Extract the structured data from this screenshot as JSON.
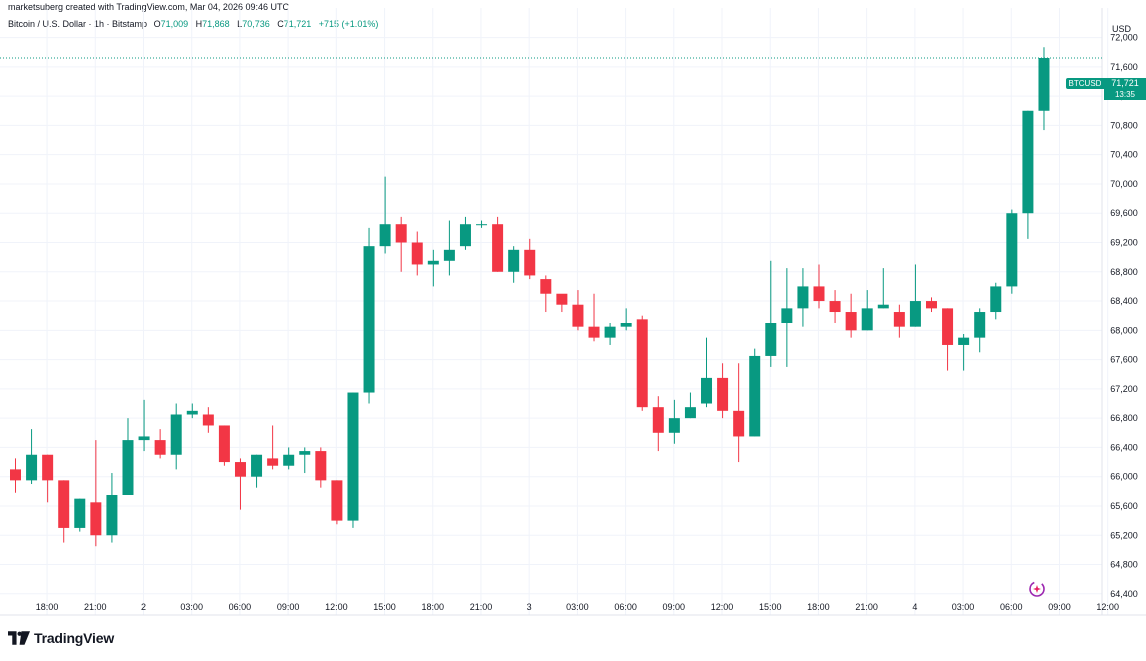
{
  "header": {
    "credit": "marketsuberg created with TradingView.com, Mar 04, 2026 09:46 UTC",
    "symbol_desc": "Bitcoin / U.S. Dollar · 1h · Bitstamp",
    "ohlc": {
      "o_label": "O",
      "o_value": "71,009",
      "h_label": "H",
      "h_value": "71,868",
      "l_label": "L",
      "l_value": "70,736",
      "c_label": "C",
      "c_value": "71,721",
      "change": "+715 (+1.01%)"
    },
    "currency": "USD"
  },
  "price_tag": {
    "symbol": "BTCUSD",
    "price": "71,721",
    "countdown": "13:35"
  },
  "brand": {
    "name": "TradingView"
  },
  "colors": {
    "up": "#089981",
    "down": "#f23645",
    "grid": "#f0f3fa",
    "axis_text": "#131722"
  },
  "icons": {
    "brand": "tradingview-logo-icon",
    "assistant": "ai-sparkle-icon"
  },
  "chart_data": {
    "type": "candlestick",
    "interval": "1h",
    "ylim": [
      64400,
      72400
    ],
    "y_ticks": [
      64400,
      64800,
      65200,
      65600,
      66000,
      66400,
      66800,
      67200,
      67600,
      68000,
      68400,
      68800,
      69200,
      69600,
      70000,
      70400,
      70800,
      71200,
      71600,
      72000
    ],
    "y_tick_labels": [
      "64,400",
      "64,800",
      "65,200",
      "65,600",
      "66,000",
      "66,400",
      "66,800",
      "67,200",
      "67,600",
      "68,000",
      "68,400",
      "68,800",
      "69,200",
      "69,600",
      "70,000",
      "70,400",
      "70,800",
      "71,200",
      "71,600",
      "72,000"
    ],
    "x_ticks": [
      {
        "label": "18:00",
        "index": 1
      },
      {
        "label": "21:00",
        "index": 4
      },
      {
        "label": "2",
        "index": 7
      },
      {
        "label": "03:00",
        "index": 10
      },
      {
        "label": "06:00",
        "index": 13
      },
      {
        "label": "09:00",
        "index": 16
      },
      {
        "label": "12:00",
        "index": 19
      },
      {
        "label": "15:00",
        "index": 22
      },
      {
        "label": "18:00",
        "index": 25
      },
      {
        "label": "21:00",
        "index": 28
      },
      {
        "label": "3",
        "index": 31
      },
      {
        "label": "03:00",
        "index": 34
      },
      {
        "label": "06:00",
        "index": 37
      },
      {
        "label": "09:00",
        "index": 40
      },
      {
        "label": "12:00",
        "index": 43
      },
      {
        "label": "15:00",
        "index": 46
      },
      {
        "label": "18:00",
        "index": 49
      },
      {
        "label": "21:00",
        "index": 52
      },
      {
        "label": "4",
        "index": 55
      },
      {
        "label": "03:00",
        "index": 58
      },
      {
        "label": "06:00",
        "index": 61
      },
      {
        "label": "09:00",
        "index": 64
      },
      {
        "label": "12:00",
        "index": 67
      }
    ],
    "last_price": 71721,
    "candles": [
      {
        "o": 66100,
        "h": 66250,
        "l": 65780,
        "c": 65950
      },
      {
        "o": 65950,
        "h": 66650,
        "l": 65900,
        "c": 66300
      },
      {
        "o": 66300,
        "h": 66300,
        "l": 65650,
        "c": 65950
      },
      {
        "o": 65950,
        "h": 65950,
        "l": 65100,
        "c": 65300
      },
      {
        "o": 65300,
        "h": 65700,
        "l": 65250,
        "c": 65700
      },
      {
        "o": 65650,
        "h": 66500,
        "l": 65050,
        "c": 65200
      },
      {
        "o": 65200,
        "h": 66050,
        "l": 65100,
        "c": 65750
      },
      {
        "o": 65750,
        "h": 66800,
        "l": 65750,
        "c": 66500
      },
      {
        "o": 66500,
        "h": 67050,
        "l": 66350,
        "c": 66550
      },
      {
        "o": 66500,
        "h": 66650,
        "l": 66250,
        "c": 66300
      },
      {
        "o": 66300,
        "h": 67000,
        "l": 66100,
        "c": 66850
      },
      {
        "o": 66850,
        "h": 67000,
        "l": 66800,
        "c": 66900
      },
      {
        "o": 66850,
        "h": 66950,
        "l": 66600,
        "c": 66700
      },
      {
        "o": 66700,
        "h": 66700,
        "l": 66150,
        "c": 66200
      },
      {
        "o": 66200,
        "h": 66250,
        "l": 65550,
        "c": 66000
      },
      {
        "o": 66000,
        "h": 66300,
        "l": 65850,
        "c": 66300
      },
      {
        "o": 66250,
        "h": 66700,
        "l": 66100,
        "c": 66150
      },
      {
        "o": 66150,
        "h": 66400,
        "l": 66100,
        "c": 66300
      },
      {
        "o": 66300,
        "h": 66400,
        "l": 66050,
        "c": 66350
      },
      {
        "o": 66350,
        "h": 66400,
        "l": 65850,
        "c": 65950
      },
      {
        "o": 65950,
        "h": 65950,
        "l": 65350,
        "c": 65400
      },
      {
        "o": 65400,
        "h": 67150,
        "l": 65300,
        "c": 67150
      },
      {
        "o": 67150,
        "h": 69400,
        "l": 67000,
        "c": 69150
      },
      {
        "o": 69150,
        "h": 70100,
        "l": 69050,
        "c": 69450
      },
      {
        "o": 69450,
        "h": 69550,
        "l": 68800,
        "c": 69200
      },
      {
        "o": 69200,
        "h": 69350,
        "l": 68750,
        "c": 68900
      },
      {
        "o": 68900,
        "h": 69100,
        "l": 68600,
        "c": 68950
      },
      {
        "o": 68950,
        "h": 69500,
        "l": 68750,
        "c": 69100
      },
      {
        "o": 69150,
        "h": 69550,
        "l": 69100,
        "c": 69450
      },
      {
        "o": 69450,
        "h": 69500,
        "l": 69400,
        "c": 69450
      },
      {
        "o": 69450,
        "h": 69550,
        "l": 68800,
        "c": 68800
      },
      {
        "o": 68800,
        "h": 69150,
        "l": 68650,
        "c": 69100
      },
      {
        "o": 69100,
        "h": 69250,
        "l": 68700,
        "c": 68750
      },
      {
        "o": 68700,
        "h": 68750,
        "l": 68250,
        "c": 68500
      },
      {
        "o": 68500,
        "h": 68450,
        "l": 68250,
        "c": 68350
      },
      {
        "o": 68350,
        "h": 68550,
        "l": 68000,
        "c": 68050
      },
      {
        "o": 68050,
        "h": 68500,
        "l": 67850,
        "c": 67900
      },
      {
        "o": 67900,
        "h": 68100,
        "l": 67800,
        "c": 68050
      },
      {
        "o": 68050,
        "h": 68300,
        "l": 68000,
        "c": 68100
      },
      {
        "o": 68150,
        "h": 68200,
        "l": 66900,
        "c": 66950
      },
      {
        "o": 66950,
        "h": 67100,
        "l": 66350,
        "c": 66600
      },
      {
        "o": 66600,
        "h": 67050,
        "l": 66450,
        "c": 66800
      },
      {
        "o": 66800,
        "h": 67150,
        "l": 66800,
        "c": 66950
      },
      {
        "o": 67000,
        "h": 67900,
        "l": 66950,
        "c": 67350
      },
      {
        "o": 67350,
        "h": 67550,
        "l": 66800,
        "c": 66900
      },
      {
        "o": 66900,
        "h": 67550,
        "l": 66200,
        "c": 66550
      },
      {
        "o": 66550,
        "h": 67750,
        "l": 66550,
        "c": 67650
      },
      {
        "o": 67650,
        "h": 68950,
        "l": 67500,
        "c": 68100
      },
      {
        "o": 68100,
        "h": 68850,
        "l": 67500,
        "c": 68300
      },
      {
        "o": 68300,
        "h": 68850,
        "l": 68050,
        "c": 68600
      },
      {
        "o": 68600,
        "h": 68900,
        "l": 68300,
        "c": 68400
      },
      {
        "o": 68400,
        "h": 68550,
        "l": 68100,
        "c": 68250
      },
      {
        "o": 68250,
        "h": 68500,
        "l": 67900,
        "c": 68000
      },
      {
        "o": 68000,
        "h": 68550,
        "l": 68000,
        "c": 68300
      },
      {
        "o": 68300,
        "h": 68850,
        "l": 68300,
        "c": 68350
      },
      {
        "o": 68250,
        "h": 68350,
        "l": 67900,
        "c": 68050
      },
      {
        "o": 68050,
        "h": 68900,
        "l": 68050,
        "c": 68400
      },
      {
        "o": 68400,
        "h": 68450,
        "l": 68250,
        "c": 68300
      },
      {
        "o": 68300,
        "h": 68300,
        "l": 67450,
        "c": 67800
      },
      {
        "o": 67800,
        "h": 67950,
        "l": 67450,
        "c": 67900
      },
      {
        "o": 67900,
        "h": 68300,
        "l": 67700,
        "c": 68250
      },
      {
        "o": 68250,
        "h": 68650,
        "l": 68150,
        "c": 68600
      },
      {
        "o": 68600,
        "h": 69650,
        "l": 68500,
        "c": 69600
      },
      {
        "o": 69600,
        "h": 71000,
        "l": 69250,
        "c": 71000
      },
      {
        "o": 71000,
        "h": 71868,
        "l": 70736,
        "c": 71721
      }
    ]
  }
}
